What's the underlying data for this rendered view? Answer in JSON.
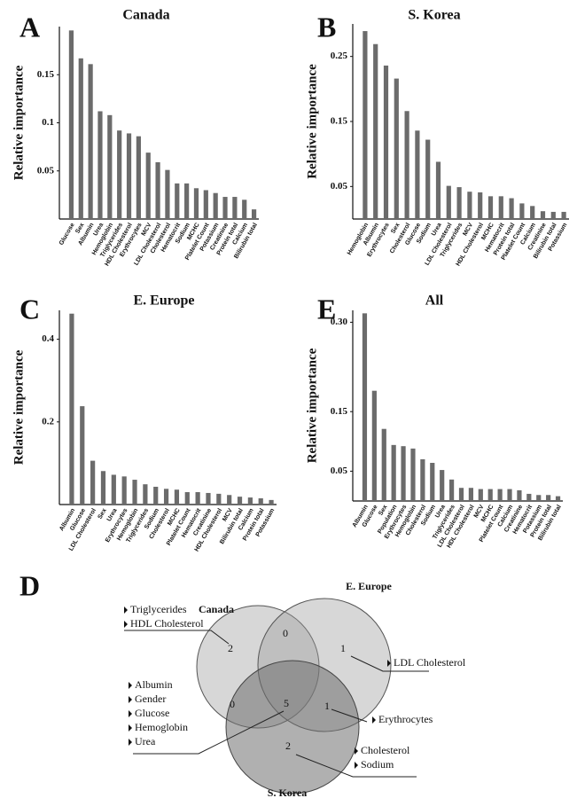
{
  "chart_data": [
    {
      "type": "bar",
      "panel": "A",
      "title": "Canada",
      "ylabel": "Relative importance",
      "color": "#6b6b6b",
      "categories": [
        "Glucose",
        "Sex",
        "Albumin",
        "Urea",
        "Hemoglobin",
        "Triglycerides",
        "HDL Cholesterol",
        "Erythrocytes",
        "MCV",
        "LDL Cholesterol",
        "Cholesterol",
        "Hematocrit",
        "Sodium",
        "MCHC",
        "Platelet Count",
        "Potassium",
        "Creatinine",
        "Protein total",
        "Calcium",
        "Bilirubin total"
      ],
      "values": [
        0.196,
        0.167,
        0.161,
        0.112,
        0.108,
        0.092,
        0.089,
        0.086,
        0.069,
        0.059,
        0.051,
        0.037,
        0.037,
        0.032,
        0.03,
        0.027,
        0.023,
        0.023,
        0.02,
        0.01
      ],
      "ylim": [
        0,
        0.2
      ],
      "yticks": [
        0.05,
        0.1,
        0.15
      ]
    },
    {
      "type": "bar",
      "panel": "B",
      "title": "S. Korea",
      "ylabel": "Relative importance",
      "color": "#6b6b6b",
      "categories": [
        "Hemoglobin",
        "Albumin",
        "Erythrocytes",
        "Sex",
        "Cholesterol",
        "Glucose",
        "Sodium",
        "Urea",
        "LDL Cholesterol",
        "Triglycerides",
        "MCV",
        "HDL Cholesterol",
        "MCHC",
        "Hematocrit",
        "Protein total",
        "Platelet Count",
        "Calcium",
        "Creatinine",
        "Bilirubin total",
        "Potassium"
      ],
      "values": [
        0.289,
        0.269,
        0.236,
        0.216,
        0.166,
        0.136,
        0.122,
        0.088,
        0.051,
        0.049,
        0.042,
        0.041,
        0.035,
        0.035,
        0.032,
        0.024,
        0.02,
        0.012,
        0.011,
        0.011
      ],
      "ylim": [
        0,
        0.3
      ],
      "yticks": [
        0.05,
        0.15,
        0.25
      ]
    },
    {
      "type": "bar",
      "panel": "C",
      "title": "E. Europe",
      "ylabel": "Relative importance",
      "color": "#6b6b6b",
      "categories": [
        "Albumin",
        "Glucose",
        "LDL Cholesterol",
        "Sex",
        "Urea",
        "Erythrocytes",
        "Hemoglobin",
        "Triglycerides",
        "Sodium",
        "Cholesterol",
        "MCHC",
        "Platelet Count",
        "Hematocrit",
        "Creatinine",
        "HDL Cholesterol",
        "MCV",
        "Bilirubin total",
        "Calcium",
        "Protein total",
        "Potassium"
      ],
      "values": [
        0.462,
        0.238,
        0.106,
        0.081,
        0.072,
        0.068,
        0.06,
        0.049,
        0.043,
        0.038,
        0.036,
        0.03,
        0.03,
        0.028,
        0.026,
        0.023,
        0.019,
        0.017,
        0.015,
        0.011
      ],
      "ylim": [
        0,
        0.47
      ],
      "yticks": [
        0.2,
        0.4
      ]
    },
    {
      "type": "bar",
      "panel": "E",
      "title": "All",
      "ylabel": "Relative importance",
      "color": "#6b6b6b",
      "categories": [
        "Albumin",
        "Glucose",
        "Sex",
        "Population",
        "Erythrocytes",
        "Hemoglobin",
        "Cholesterol",
        "Sodium",
        "Urea",
        "Triglycerides",
        "LDL Cholesterol",
        "HDL Cholesterol",
        "MCV",
        "MCHC",
        "Platelet Count",
        "Calcium",
        "Creatinine",
        "Hematocrit",
        "Potassium",
        "Protein total",
        "Bilirubin total"
      ],
      "values": [
        0.315,
        0.185,
        0.121,
        0.094,
        0.092,
        0.088,
        0.07,
        0.064,
        0.052,
        0.036,
        0.022,
        0.022,
        0.02,
        0.02,
        0.02,
        0.02,
        0.018,
        0.012,
        0.01,
        0.01,
        0.008
      ],
      "ylim": [
        0,
        0.32
      ],
      "yticks": [
        0.05,
        0.15,
        {
          "value": 0.3,
          "label": "0.30"
        }
      ]
    }
  ],
  "venn": {
    "panel": "D",
    "sets": [
      "Canada",
      "E. Europe",
      "S. Korea"
    ],
    "regions": [
      {
        "count": 2,
        "items": [
          "Triglycerides",
          "HDL Cholesterol"
        ]
      },
      {
        "count": 0,
        "items": []
      },
      {
        "count": 1,
        "items": [
          "LDL Cholesterol"
        ]
      },
      {
        "count": 5,
        "items": [
          "Albumin",
          "Gender",
          "Glucose",
          "Hemoglobin",
          "Urea"
        ]
      },
      {
        "count": 0,
        "items": []
      },
      {
        "count": 1,
        "items": [
          "Erythrocytes"
        ]
      },
      {
        "count": 2,
        "items": [
          "Cholesterol",
          "Sodium"
        ]
      }
    ]
  }
}
